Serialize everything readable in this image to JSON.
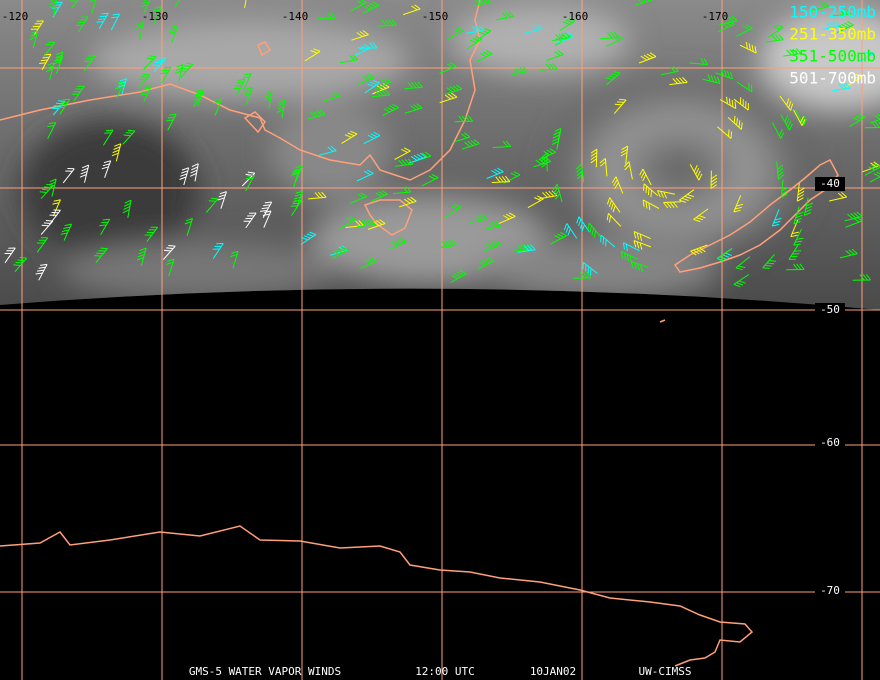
{
  "map": {
    "lon_labels": [
      "-120",
      "-130",
      "-140",
      "-150",
      "-160",
      "-170"
    ],
    "lat_labels": [
      "-40",
      "-50",
      "-60",
      "-70"
    ],
    "legend": [
      {
        "label": "150-250mb",
        "color": "#00ffff"
      },
      {
        "label": "251-350mb",
        "color": "#ffff00"
      },
      {
        "label": "351-500mb",
        "color": "#00ff00"
      },
      {
        "label": "501-700mb",
        "color": "#ffffff"
      }
    ],
    "footer": [
      "GMS-5 WATER VAPOR WINDS",
      "12:00 UTC",
      "10JAN02",
      "UW-CIMSS"
    ]
  }
}
